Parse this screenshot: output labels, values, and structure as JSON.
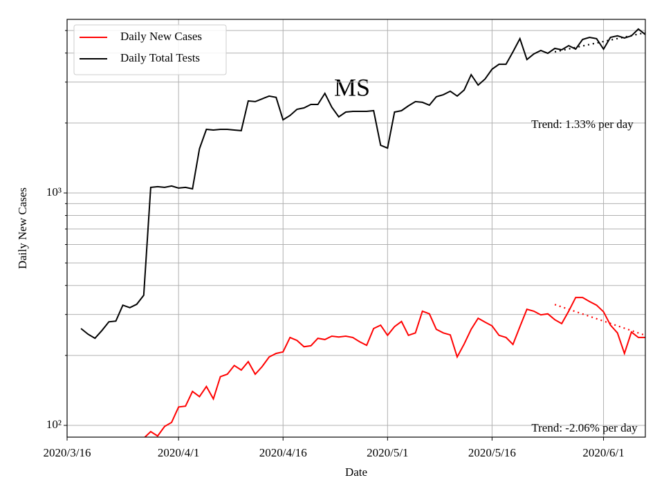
{
  "chart_data": {
    "type": "line",
    "title": "MS",
    "xlabel": "Date",
    "ylabel": "Daily New Cases",
    "yscale": "log",
    "grid": true,
    "legend": "upper left",
    "xlim": [
      "2020/3/16",
      "2020/6/7"
    ],
    "xticks": [
      "2020/3/16",
      "2020/4/1",
      "2020/4/16",
      "2020/5/1",
      "2020/5/16",
      "2020/6/1"
    ],
    "ylim": [
      89,
      5585
    ],
    "yticks": [
      {
        "value": 100,
        "label": "10²"
      },
      {
        "value": 1000,
        "label": "10³"
      }
    ],
    "yminorticks": [
      200,
      300,
      400,
      500,
      600,
      700,
      800,
      900,
      2000,
      3000,
      4000,
      5000
    ],
    "series": [
      {
        "name": "Daily New Cases",
        "color": "#ff0000",
        "start": "2020/3/27",
        "values": [
          88,
          94,
          90,
          99,
          103,
          120,
          121,
          140,
          133,
          147,
          130,
          162,
          166,
          181,
          173,
          188,
          166,
          179,
          197,
          204,
          207,
          239,
          232,
          218,
          220,
          237,
          234,
          242,
          240,
          242,
          239,
          229,
          221,
          261,
          270,
          244,
          266,
          280,
          244,
          250,
          310,
          302,
          259,
          250,
          245,
          197,
          224,
          259,
          289,
          278,
          268,
          244,
          239,
          223,
          266,
          316,
          310,
          299,
          302,
          285,
          274,
          310,
          355,
          355,
          341,
          329,
          308,
          270,
          250,
          204,
          252,
          239,
          239
        ]
      },
      {
        "name": "Daily Total Tests",
        "color": "#000000",
        "start": "2020/3/18",
        "values": [
          261,
          247,
          237,
          256,
          279,
          281,
          329,
          321,
          332,
          363,
          1057,
          1064,
          1057,
          1072,
          1050,
          1057,
          1042,
          1550,
          1879,
          1866,
          1879,
          1879,
          1866,
          1854,
          2490,
          2472,
          2541,
          2612,
          2578,
          2065,
          2154,
          2291,
          2323,
          2404,
          2404,
          2683,
          2339,
          2125,
          2230,
          2245,
          2245,
          2245,
          2260,
          1605,
          1560,
          2230,
          2260,
          2371,
          2472,
          2455,
          2388,
          2594,
          2648,
          2740,
          2612,
          2775,
          3228,
          2913,
          3094,
          3410,
          3580,
          3580,
          4046,
          4613,
          3750,
          3966,
          4104,
          3990,
          4188,
          4131,
          4305,
          4160,
          4578,
          4674,
          4613,
          4160,
          4674,
          4746,
          4642,
          4746,
          5073,
          4806
        ]
      }
    ],
    "trends": [
      {
        "color": "#ff0000",
        "x": [
          "2020/5/25",
          "2020/6/7"
        ],
        "values": [
          331,
          244
        ],
        "text": "Trend: -2.06% per day"
      },
      {
        "color": "#000000",
        "x": [
          "2020/5/25",
          "2020/6/7"
        ],
        "values": [
          4046,
          4897
        ],
        "text": "Trend: 1.33% per day"
      }
    ]
  }
}
